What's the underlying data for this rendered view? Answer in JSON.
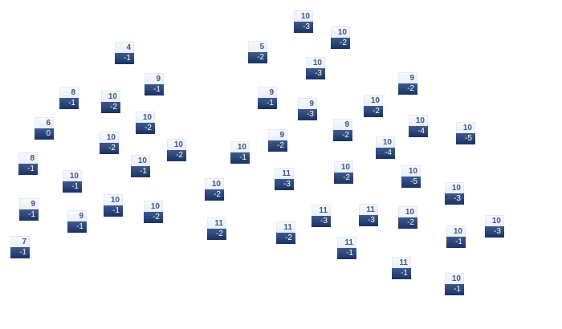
{
  "colors": {
    "top_bg": "#eef2fa",
    "top_text": "#3b5587",
    "bottom_bg": "#2a4576",
    "bottom_text": "#ffffff"
  },
  "nodes": [
    {
      "top": "4",
      "bottom": "-1"
    },
    {
      "top": "5",
      "bottom": "-2"
    },
    {
      "top": "9",
      "bottom": "-1"
    },
    {
      "top": "8",
      "bottom": "-1"
    },
    {
      "top": "10",
      "bottom": "-2"
    },
    {
      "top": "10",
      "bottom": "-2"
    },
    {
      "top": "9",
      "bottom": "-1"
    },
    {
      "top": "6",
      "bottom": "0"
    },
    {
      "top": "10",
      "bottom": "-2"
    },
    {
      "top": "10",
      "bottom": "-2"
    },
    {
      "top": "10",
      "bottom": "-1"
    },
    {
      "top": "9",
      "bottom": "-2"
    },
    {
      "top": "8",
      "bottom": "-1"
    },
    {
      "top": "10",
      "bottom": "-1"
    },
    {
      "top": "10",
      "bottom": "-1"
    },
    {
      "top": "9",
      "bottom": "-1"
    },
    {
      "top": "9",
      "bottom": "-1"
    },
    {
      "top": "10",
      "bottom": "-1"
    },
    {
      "top": "10",
      "bottom": "-2"
    },
    {
      "top": "10",
      "bottom": "-2"
    },
    {
      "top": "11",
      "bottom": "-2"
    },
    {
      "top": "7",
      "bottom": "-1"
    },
    {
      "top": "10",
      "bottom": "-3"
    },
    {
      "top": "10",
      "bottom": "-2"
    },
    {
      "top": "10",
      "bottom": "-3"
    },
    {
      "top": "9",
      "bottom": "-2"
    },
    {
      "top": "9",
      "bottom": "-3"
    },
    {
      "top": "10",
      "bottom": "-2"
    },
    {
      "top": "9",
      "bottom": "-2"
    },
    {
      "top": "10",
      "bottom": "-4"
    },
    {
      "top": "10",
      "bottom": "-5"
    },
    {
      "top": "10",
      "bottom": "-4"
    },
    {
      "top": "11",
      "bottom": "-3"
    },
    {
      "top": "10",
      "bottom": "-2"
    },
    {
      "top": "10",
      "bottom": "-5"
    },
    {
      "top": "10",
      "bottom": "-3"
    },
    {
      "top": "11",
      "bottom": "-3"
    },
    {
      "top": "11",
      "bottom": "-3"
    },
    {
      "top": "10",
      "bottom": "-2"
    },
    {
      "top": "11",
      "bottom": "-2"
    },
    {
      "top": "10",
      "bottom": "-1"
    },
    {
      "top": "10",
      "bottom": "-3"
    },
    {
      "top": "11",
      "bottom": "-1"
    },
    {
      "top": "11",
      "bottom": "-1"
    },
    {
      "top": "10",
      "bottom": "-1"
    }
  ]
}
